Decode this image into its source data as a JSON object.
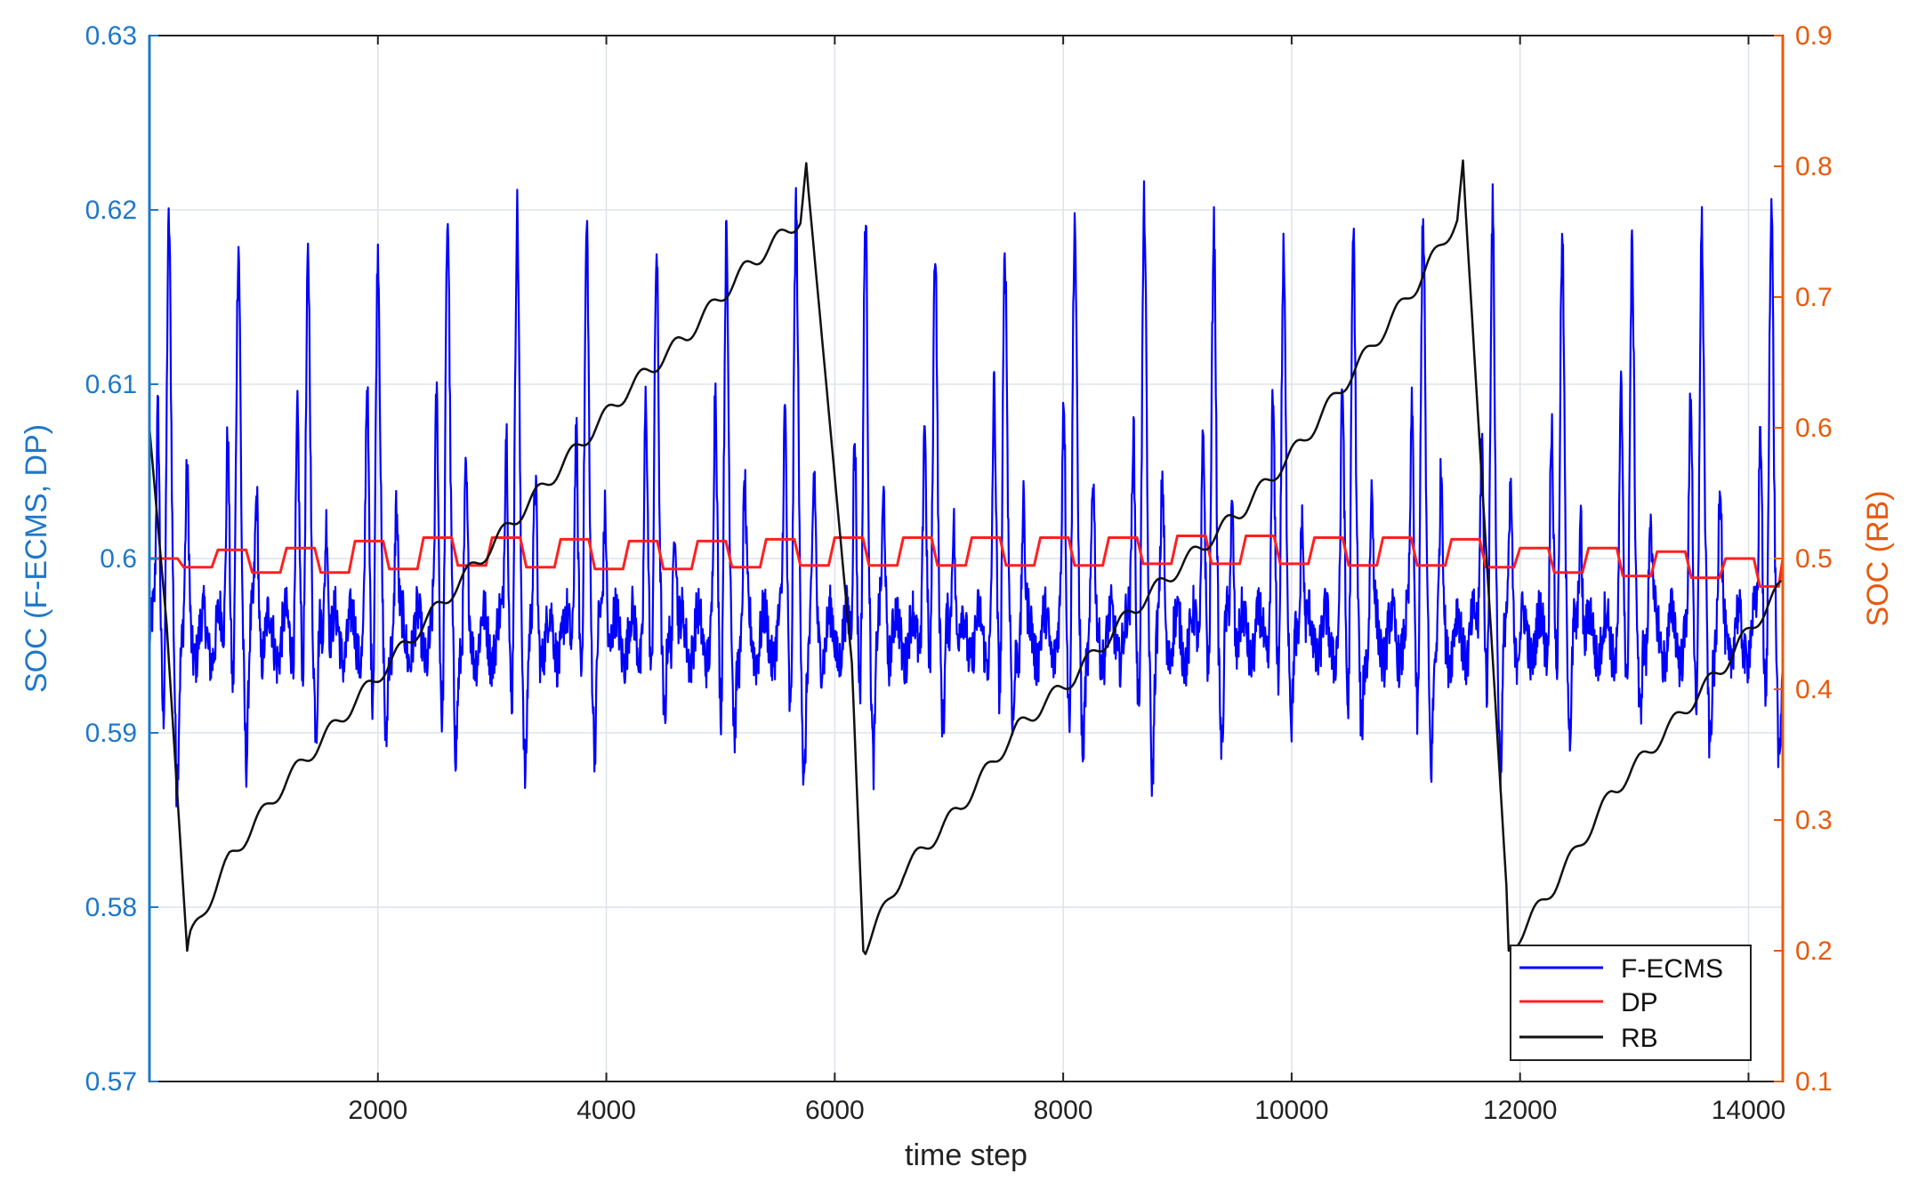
{
  "chart_data": {
    "type": "line",
    "title": "",
    "xlabel": "time step",
    "ylabel_left": "SOC (F-ECMS, DP)",
    "ylabel_right": "SOC (RB)",
    "xlim": [
      0,
      14300
    ],
    "xticks": [
      2000,
      4000,
      6000,
      8000,
      10000,
      12000,
      14000
    ],
    "ylim_left": [
      0.57,
      0.63
    ],
    "yticks_left": [
      0.57,
      0.58,
      0.59,
      0.6,
      0.61,
      0.62,
      0.63
    ],
    "ylim_right": [
      0.1,
      0.9
    ],
    "yticks_right": [
      0.1,
      0.2,
      0.3,
      0.4,
      0.5,
      0.6,
      0.7,
      0.8,
      0.9
    ],
    "grid": true,
    "legend_position": "bottom-right",
    "colors": {
      "left_axis": "#1f78c8",
      "right_axis": "#e8590c",
      "grid": "#dde3ea"
    },
    "series": [
      {
        "name": "F-ECMS",
        "axis": "left",
        "color": "#0000ff",
        "pattern": "periodic spikes about every 610 time steps",
        "baseline": 0.5955,
        "peak_max": 0.619,
        "trough_min": 0.588
      },
      {
        "name": "DP",
        "axis": "left",
        "color": "#ff2020",
        "x": [
          0,
          300,
          600,
          900,
          1200,
          1500,
          1800,
          2100,
          2400,
          2700,
          3000,
          3300,
          3600,
          3900,
          4200,
          4500,
          4800,
          5100,
          5400,
          5700,
          6000,
          6300,
          6600,
          6900,
          7200,
          7500,
          7800,
          8100,
          8400,
          8700,
          9000,
          9300,
          9600,
          9900,
          10200,
          10500,
          10800,
          11100,
          11400,
          11700,
          12000,
          12300,
          12600,
          12900,
          13200,
          13500,
          13800,
          14100,
          14300
        ],
        "values": [
          0.6,
          0.5995,
          0.6005,
          0.5992,
          0.6006,
          0.5992,
          0.601,
          0.5994,
          0.6012,
          0.5996,
          0.6012,
          0.5995,
          0.6011,
          0.5994,
          0.601,
          0.5994,
          0.601,
          0.5995,
          0.6011,
          0.5996,
          0.6012,
          0.5996,
          0.6012,
          0.5996,
          0.6012,
          0.5996,
          0.6012,
          0.5996,
          0.6012,
          0.5997,
          0.6013,
          0.5997,
          0.6013,
          0.5997,
          0.6012,
          0.5996,
          0.6012,
          0.5996,
          0.6011,
          0.5995,
          0.6006,
          0.5992,
          0.6006,
          0.599,
          0.6004,
          0.5989,
          0.6,
          0.5984,
          0.6
        ]
      },
      {
        "name": "RB",
        "axis": "right",
        "x": [
          0,
          150,
          330,
          360,
          700,
          1200,
          1700,
          2200,
          2700,
          3200,
          3700,
          4200,
          4700,
          5200,
          5700,
          5750,
          6150,
          6250,
          6600,
          7100,
          7600,
          8100,
          8600,
          9100,
          9600,
          10100,
          10600,
          11100,
          11450,
          11500,
          11880,
          11900,
          12300,
          12800,
          13300,
          13800,
          14300
        ],
        "values": [
          0.6,
          0.45,
          0.2,
          0.21,
          0.27,
          0.33,
          0.38,
          0.43,
          0.48,
          0.53,
          0.58,
          0.63,
          0.67,
          0.72,
          0.76,
          0.8,
          0.42,
          0.2,
          0.26,
          0.31,
          0.37,
          0.41,
          0.46,
          0.5,
          0.54,
          0.59,
          0.65,
          0.71,
          0.76,
          0.8,
          0.25,
          0.2,
          0.25,
          0.32,
          0.37,
          0.42,
          0.48
        ],
        "color": "#111111"
      }
    ]
  }
}
